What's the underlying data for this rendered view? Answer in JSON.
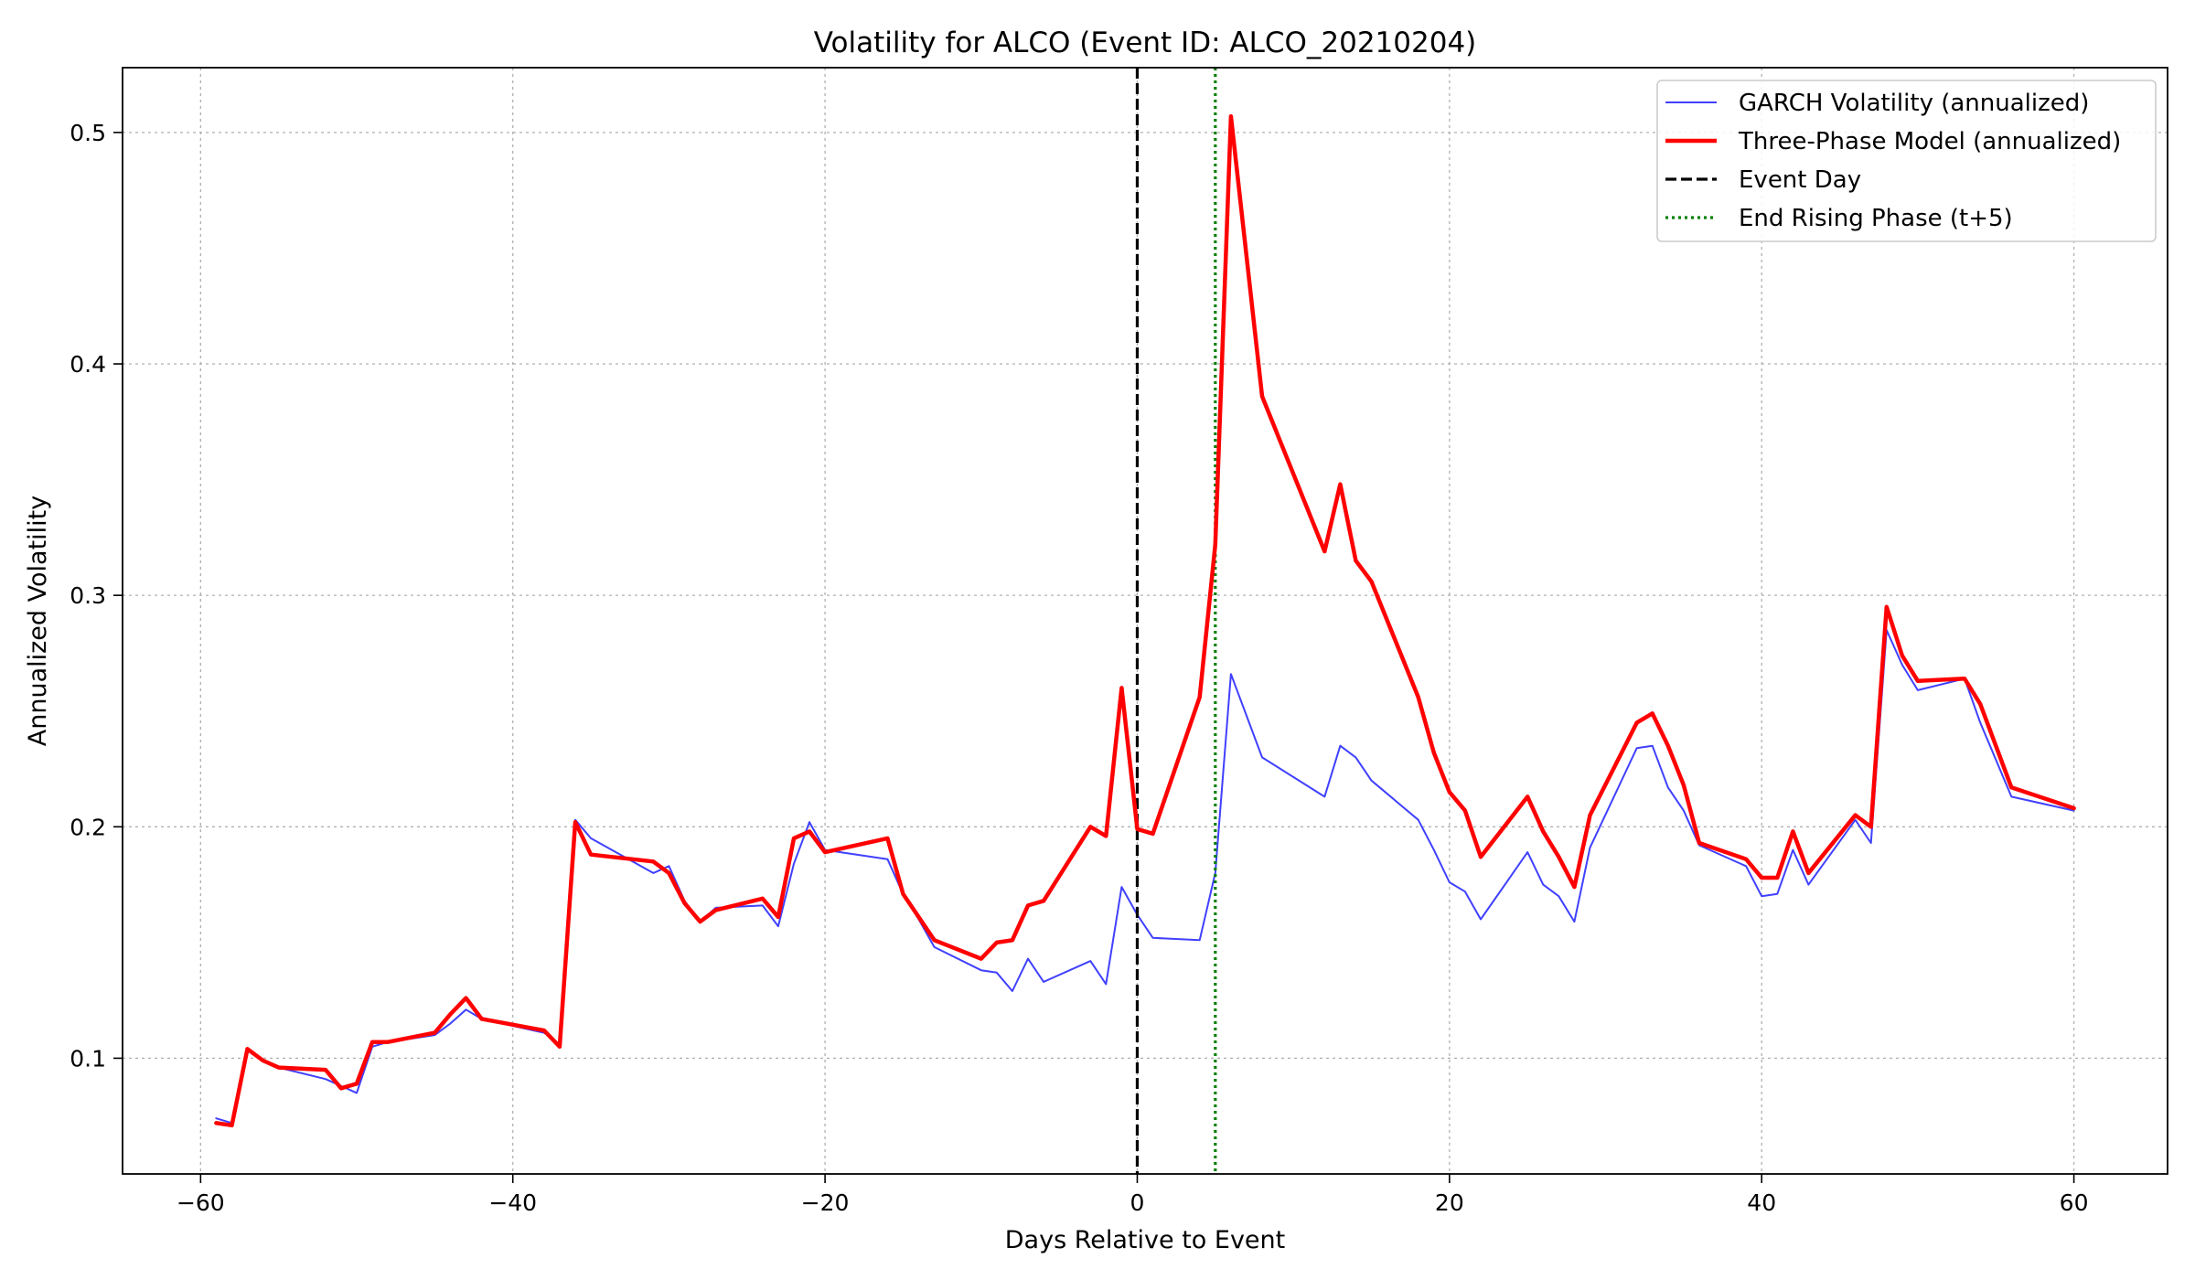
{
  "chart_data": {
    "type": "line",
    "title": "Volatility for ALCO (Event ID: ALCO_20210204)",
    "xlabel": "Days Relative to Event",
    "ylabel": "Annualized Volatility",
    "xlim": [
      -65,
      66
    ],
    "ylim": [
      0.05,
      0.528
    ],
    "xticks": [
      -60,
      -40,
      -20,
      0,
      20,
      40,
      60
    ],
    "xtick_labels": [
      "−60",
      "−40",
      "−20",
      "0",
      "20",
      "40",
      "60"
    ],
    "yticks": [
      0.1,
      0.2,
      0.3,
      0.4,
      0.5
    ],
    "ytick_labels": [
      "0.1",
      "0.2",
      "0.3",
      "0.4",
      "0.5"
    ],
    "grid": true,
    "legend_position": "top-right",
    "series": [
      {
        "name": "GARCH Volatility (annualized)",
        "color": "#4040ff",
        "style": "thin-solid",
        "points": [
          [
            -59,
            0.074
          ],
          [
            -58,
            0.072
          ],
          [
            -57,
            0.104
          ],
          [
            -56,
            0.099
          ],
          [
            -55,
            0.096
          ],
          [
            -52,
            0.091
          ],
          [
            -51,
            0.088
          ],
          [
            -50,
            0.085
          ],
          [
            -49,
            0.105
          ],
          [
            -48,
            0.107
          ],
          [
            -45,
            0.11
          ],
          [
            -44,
            0.115
          ],
          [
            -43,
            0.121
          ],
          [
            -42,
            0.117
          ],
          [
            -38,
            0.111
          ],
          [
            -37,
            0.106
          ],
          [
            -36,
            0.203
          ],
          [
            -35,
            0.195
          ],
          [
            -31,
            0.18
          ],
          [
            -30,
            0.183
          ],
          [
            -29,
            0.168
          ],
          [
            -28,
            0.159
          ],
          [
            -27,
            0.165
          ],
          [
            -24,
            0.166
          ],
          [
            -23,
            0.157
          ],
          [
            -22,
            0.184
          ],
          [
            -21,
            0.202
          ],
          [
            -20,
            0.19
          ],
          [
            -16,
            0.186
          ],
          [
            -15,
            0.171
          ],
          [
            -14,
            0.16
          ],
          [
            -13,
            0.148
          ],
          [
            -10,
            0.138
          ],
          [
            -9,
            0.137
          ],
          [
            -8,
            0.129
          ],
          [
            -7,
            0.143
          ],
          [
            -6,
            0.133
          ],
          [
            -3,
            0.142
          ],
          [
            -2,
            0.132
          ],
          [
            -1,
            0.174
          ],
          [
            0,
            0.162
          ],
          [
            1,
            0.152
          ],
          [
            4,
            0.151
          ],
          [
            5,
            0.18
          ],
          [
            6,
            0.266
          ],
          [
            8,
            0.23
          ],
          [
            12,
            0.213
          ],
          [
            13,
            0.235
          ],
          [
            14,
            0.23
          ],
          [
            15,
            0.22
          ],
          [
            18,
            0.203
          ],
          [
            19,
            0.19
          ],
          [
            20,
            0.176
          ],
          [
            21,
            0.172
          ],
          [
            22,
            0.16
          ],
          [
            25,
            0.189
          ],
          [
            26,
            0.175
          ],
          [
            27,
            0.17
          ],
          [
            28,
            0.159
          ],
          [
            29,
            0.191
          ],
          [
            32,
            0.234
          ],
          [
            33,
            0.235
          ],
          [
            34,
            0.217
          ],
          [
            35,
            0.207
          ],
          [
            36,
            0.192
          ],
          [
            39,
            0.183
          ],
          [
            40,
            0.17
          ],
          [
            41,
            0.171
          ],
          [
            42,
            0.19
          ],
          [
            43,
            0.175
          ],
          [
            46,
            0.203
          ],
          [
            47,
            0.193
          ],
          [
            48,
            0.285
          ],
          [
            49,
            0.27
          ],
          [
            50,
            0.259
          ],
          [
            53,
            0.264
          ],
          [
            54,
            0.245
          ],
          [
            56,
            0.213
          ],
          [
            60,
            0.207
          ]
        ]
      },
      {
        "name": "Three-Phase Model (annualized)",
        "color": "#ff0000",
        "style": "thick-solid",
        "points": [
          [
            -59,
            0.072
          ],
          [
            -58,
            0.071
          ],
          [
            -57,
            0.104
          ],
          [
            -56,
            0.099
          ],
          [
            -55,
            0.096
          ],
          [
            -52,
            0.095
          ],
          [
            -51,
            0.087
          ],
          [
            -50,
            0.089
          ],
          [
            -49,
            0.107
          ],
          [
            -48,
            0.107
          ],
          [
            -45,
            0.111
          ],
          [
            -44,
            0.119
          ],
          [
            -43,
            0.126
          ],
          [
            -42,
            0.117
          ],
          [
            -38,
            0.112
          ],
          [
            -37,
            0.105
          ],
          [
            -36,
            0.202
          ],
          [
            -35,
            0.188
          ],
          [
            -31,
            0.185
          ],
          [
            -30,
            0.18
          ],
          [
            -29,
            0.167
          ],
          [
            -28,
            0.159
          ],
          [
            -27,
            0.164
          ],
          [
            -24,
            0.169
          ],
          [
            -23,
            0.161
          ],
          [
            -22,
            0.195
          ],
          [
            -21,
            0.198
          ],
          [
            -20,
            0.189
          ],
          [
            -16,
            0.195
          ],
          [
            -15,
            0.171
          ],
          [
            -14,
            0.161
          ],
          [
            -13,
            0.151
          ],
          [
            -10,
            0.143
          ],
          [
            -9,
            0.15
          ],
          [
            -8,
            0.151
          ],
          [
            -7,
            0.166
          ],
          [
            -6,
            0.168
          ],
          [
            -3,
            0.2
          ],
          [
            -2,
            0.196
          ],
          [
            -1,
            0.26
          ],
          [
            0,
            0.199
          ],
          [
            1,
            0.197
          ],
          [
            4,
            0.256
          ],
          [
            5,
            0.322
          ],
          [
            6,
            0.507
          ],
          [
            8,
            0.386
          ],
          [
            12,
            0.319
          ],
          [
            13,
            0.348
          ],
          [
            14,
            0.315
          ],
          [
            15,
            0.306
          ],
          [
            18,
            0.256
          ],
          [
            19,
            0.232
          ],
          [
            20,
            0.215
          ],
          [
            21,
            0.207
          ],
          [
            22,
            0.187
          ],
          [
            25,
            0.213
          ],
          [
            26,
            0.198
          ],
          [
            27,
            0.187
          ],
          [
            28,
            0.174
          ],
          [
            29,
            0.205
          ],
          [
            32,
            0.245
          ],
          [
            33,
            0.249
          ],
          [
            34,
            0.235
          ],
          [
            35,
            0.218
          ],
          [
            36,
            0.193
          ],
          [
            39,
            0.186
          ],
          [
            40,
            0.178
          ],
          [
            41,
            0.178
          ],
          [
            42,
            0.198
          ],
          [
            43,
            0.18
          ],
          [
            46,
            0.205
          ],
          [
            47,
            0.2
          ],
          [
            48,
            0.295
          ],
          [
            49,
            0.274
          ],
          [
            50,
            0.263
          ],
          [
            53,
            0.264
          ],
          [
            54,
            0.253
          ],
          [
            56,
            0.217
          ],
          [
            60,
            0.208
          ]
        ]
      },
      {
        "name": "Event Day",
        "color": "#000000",
        "style": "dashed-vertical",
        "x": 0
      },
      {
        "name": "End Rising Phase (t+5)",
        "color": "#008000",
        "style": "dotted-vertical",
        "x": 5
      }
    ]
  }
}
